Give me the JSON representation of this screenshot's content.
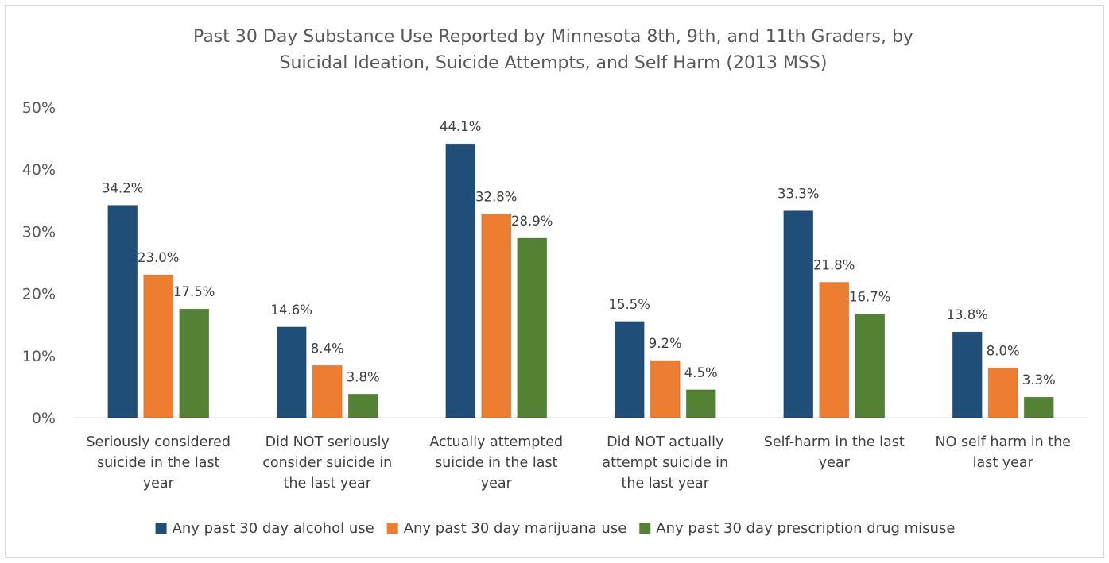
{
  "chart_data": {
    "type": "bar",
    "title": "Past 30 Day Substance Use Reported by Minnesota 8th, 9th, and 11th Graders, by Suicidal Ideation, Suicide Attempts, and Self Harm (2013 MSS)",
    "title_lines": [
      "Past 30 Day Substance Use Reported by Minnesota 8th, 9th, and 11th Graders, by",
      "Suicidal Ideation, Suicide Attempts, and Self Harm (2013 MSS)"
    ],
    "categories": [
      "Seriously considered suicide in the last year",
      "Did NOT seriously consider suicide in the last year",
      "Actually attempted suicide in the last year",
      "Did NOT actually attempt suicide in the last year",
      "Self-harm in the last year",
      "NO self harm in the last year"
    ],
    "category_lines": [
      [
        "Seriously considered",
        "suicide in the last",
        "year"
      ],
      [
        "Did NOT seriously",
        "consider suicide in",
        "the last year"
      ],
      [
        "Actually attempted",
        "suicide in the last",
        "year"
      ],
      [
        "Did NOT actually",
        "attempt suicide in",
        "the last year"
      ],
      [
        "Self-harm in the last",
        "year"
      ],
      [
        "NO self harm in the",
        "last year"
      ]
    ],
    "series": [
      {
        "name": "Any past 30 day alcohol use",
        "color": "#1f4e79",
        "values": [
          34.2,
          14.6,
          44.1,
          15.5,
          33.3,
          13.8
        ],
        "labels": [
          "34.2%",
          "14.6%",
          "44.1%",
          "15.5%",
          "33.3%",
          "13.8%"
        ]
      },
      {
        "name": "Any past 30 day marijuana use",
        "color": "#ed7d31",
        "values": [
          23.0,
          8.4,
          32.8,
          9.2,
          21.8,
          8.0
        ],
        "labels": [
          "23.0%",
          "8.4%",
          "32.8%",
          "9.2%",
          "21.8%",
          "8.0%"
        ]
      },
      {
        "name": "Any past 30 day prescription drug misuse",
        "color": "#548235",
        "values": [
          17.5,
          3.8,
          28.9,
          4.5,
          16.7,
          3.3
        ],
        "labels": [
          "17.5%",
          "3.8%",
          "28.9%",
          "4.5%",
          "16.7%",
          "3.3%"
        ]
      }
    ],
    "yticks": [
      0,
      10,
      20,
      30,
      40,
      50
    ],
    "ytick_labels": [
      "0%",
      "10%",
      "20%",
      "30%",
      "40%",
      "50%"
    ],
    "ylim": [
      0,
      50
    ],
    "xlabel": "",
    "ylabel": "",
    "grid": false,
    "legend": "bottom"
  }
}
